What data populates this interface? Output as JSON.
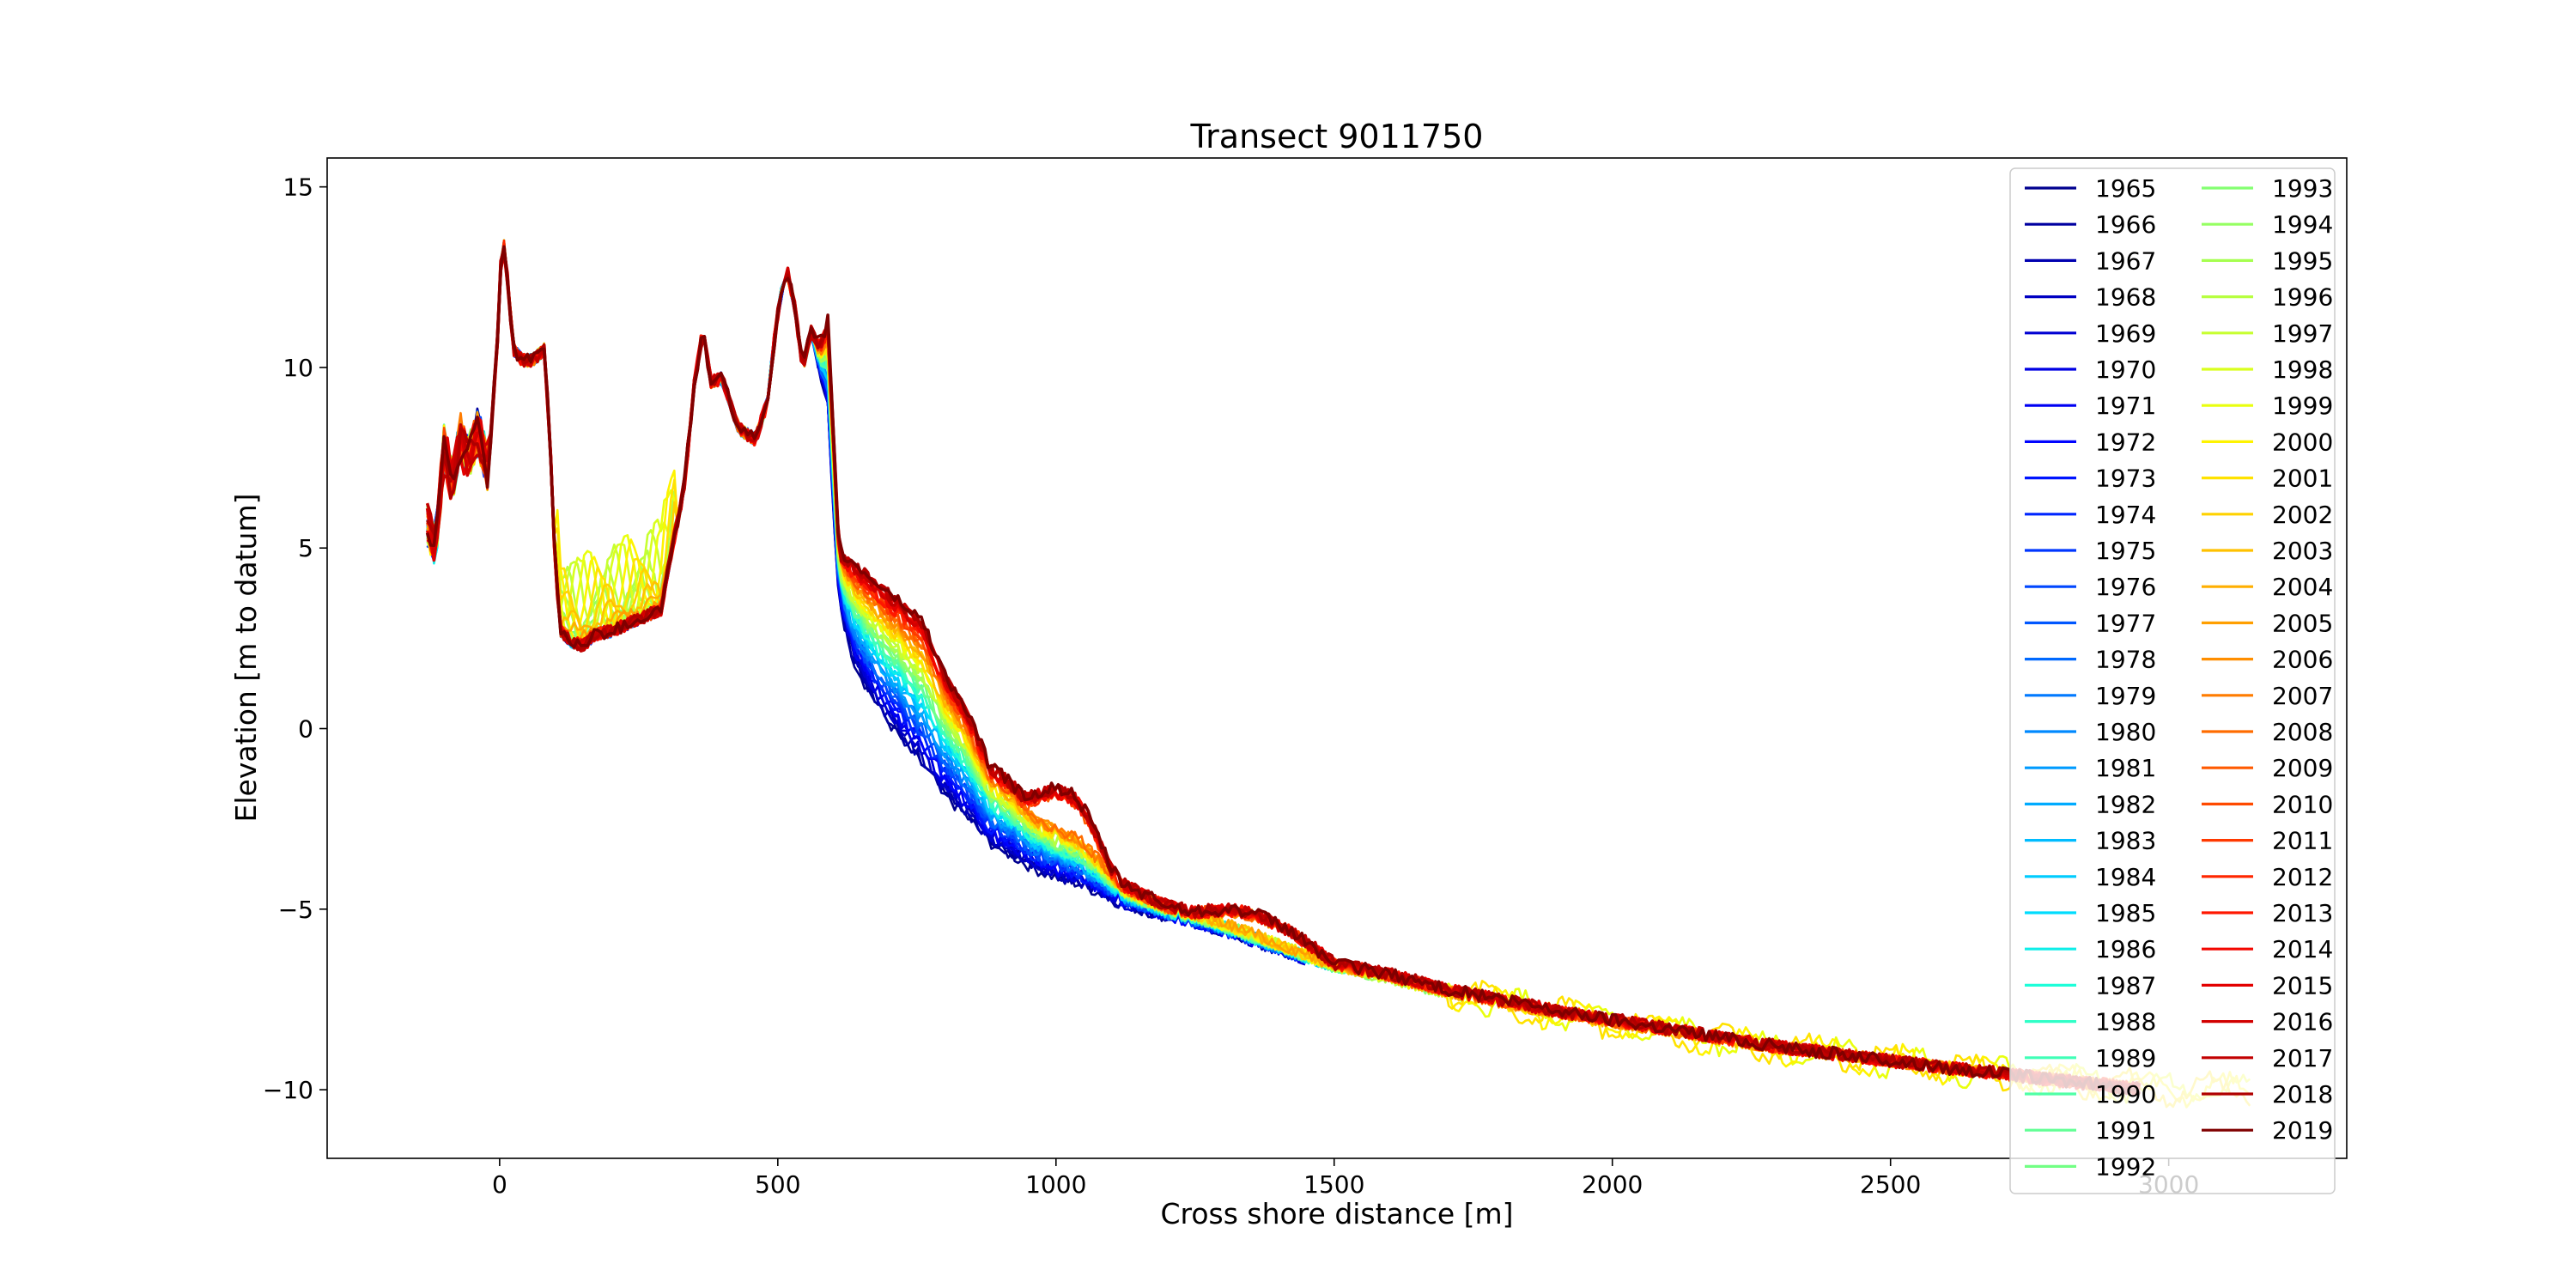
{
  "chart_data": {
    "type": "line",
    "title": "Transect 9011750",
    "xlabel": "Cross shore distance [m]",
    "ylabel": "Elevation [m to datum]",
    "xlim": [
      -310,
      3320
    ],
    "ylim": [
      -11.9,
      15.8
    ],
    "xticks": [
      0,
      500,
      1000,
      1500,
      2000,
      2500,
      3000
    ],
    "yticks": [
      -10,
      -5,
      0,
      5,
      10,
      15
    ],
    "xtick_labels": [
      "0",
      "500",
      "1000",
      "1500",
      "2000",
      "2500",
      "3000"
    ],
    "ytick_labels": [
      "−10",
      "−5",
      "0",
      "5",
      "10",
      "15"
    ],
    "grid": false,
    "legend_position": "top-right",
    "legend_columns": 2,
    "colormap": "jet",
    "colormap_stops": [
      "#00008f",
      "#0000ff",
      "#00ffff",
      "#7fff7f",
      "#ffff00",
      "#ff7f00",
      "#ff0000",
      "#800000"
    ],
    "profile": {
      "base_x": [
        -130,
        -115,
        -100,
        -85,
        -70,
        -55,
        -40,
        -20,
        -5,
        5,
        15,
        25,
        40,
        60,
        80,
        90,
        100,
        110,
        130,
        150,
        170,
        200,
        230,
        260,
        290,
        310,
        330,
        350,
        365,
        380,
        400,
        430,
        460,
        480,
        500,
        515,
        530,
        545,
        560,
        575,
        590,
        610,
        640,
        680,
        720,
        760,
        800,
        840,
        880,
        920,
        960,
        1000,
        1040,
        1080,
        1120,
        1160,
        1200,
        1260,
        1320,
        1400,
        1500,
        1600,
        1700,
        1800,
        1900,
        2000,
        2100,
        2200,
        2300,
        2400,
        2500,
        2600,
        2700,
        2800,
        2900,
        3000
      ],
      "base_y": [
        5.7,
        5.0,
        7.7,
        6.8,
        8.0,
        7.5,
        8.2,
        7.2,
        10.5,
        13.8,
        12.3,
        10.5,
        10.2,
        10.2,
        10.5,
        8.2,
        4.5,
        2.7,
        2.4,
        2.3,
        2.6,
        2.7,
        2.9,
        3.1,
        3.3,
        5.0,
        6.5,
        9.5,
        11.0,
        9.6,
        9.7,
        8.3,
        8.0,
        9.0,
        11.5,
        12.8,
        11.7,
        10.0,
        11.0,
        10.6,
        11.3,
        4.9,
        4.5,
        4.0,
        3.5,
        3.0,
        1.5,
        0.5,
        -1.0,
        -1.5,
        -2.2,
        -2.5,
        -2.8,
        -3.5,
        -4.3,
        -4.6,
        -4.9,
        -5.1,
        -5.4,
        -5.9,
        -6.5,
        -6.8,
        -7.2,
        -7.5,
        -7.8,
        -8.05,
        -8.3,
        -8.55,
        -8.8,
        -9.0,
        -9.2,
        -9.4,
        -9.55,
        -9.75,
        -9.9,
        -10.1
      ],
      "scarp_start_x": 540,
      "scarp_y": [
        10.8,
        10.6,
        7.0,
        4.5,
        2.4,
        1.0,
        0.0,
        -1.0,
        -2.0,
        -3.0,
        -3.6,
        -4.0,
        -4.4,
        -4.8,
        -5.1,
        -5.4,
        -5.8,
        -6.3,
        -6.8,
        -7.2,
        -7.6,
        -7.9,
        -8.2,
        -8.45,
        -8.7,
        -8.95,
        -9.15,
        -9.35,
        -9.55,
        -9.75
      ],
      "scarp_x": [
        540,
        560,
        575,
        590,
        620,
        660,
        700,
        750,
        820,
        900,
        960,
        1000,
        1060,
        1120,
        1180,
        1240,
        1320,
        1420,
        1520,
        1620,
        1720,
        1820,
        1920,
        2020,
        2150,
        2300,
        2450,
        2600,
        2750,
        2900
      ]
    },
    "series": [
      {
        "name": "1965",
        "color": "#00008f",
        "max_x": 1450
      },
      {
        "name": "1966",
        "color": "#0000a0",
        "max_x": 1450
      },
      {
        "name": "1967",
        "color": "#0000b0",
        "max_x": 1450
      },
      {
        "name": "1968",
        "color": "#0000c2",
        "max_x": 1450
      },
      {
        "name": "1969",
        "color": "#0000d2",
        "max_x": 1450
      },
      {
        "name": "1970",
        "color": "#0000e3",
        "max_x": 1450
      },
      {
        "name": "1971",
        "color": "#0000f3",
        "max_x": 1450
      },
      {
        "name": "1972",
        "color": "#0004ff",
        "max_x": 1450
      },
      {
        "name": "1973",
        "color": "#0014ff",
        "max_x": 1450
      },
      {
        "name": "1974",
        "color": "#0026ff",
        "max_x": 1450
      },
      {
        "name": "1975",
        "color": "#0036ff",
        "max_x": 1450
      },
      {
        "name": "1976",
        "color": "#0047ff",
        "max_x": 1450
      },
      {
        "name": "1977",
        "color": "#0057ff",
        "max_x": 1450
      },
      {
        "name": "1978",
        "color": "#0069ff",
        "max_x": 1450
      },
      {
        "name": "1979",
        "color": "#0079ff",
        "max_x": 1450
      },
      {
        "name": "1980",
        "color": "#0089ff",
        "max_x": 1450
      },
      {
        "name": "1981",
        "color": "#009bff",
        "max_x": 1490
      },
      {
        "name": "1982",
        "color": "#00abff",
        "max_x": 1490
      },
      {
        "name": "1983",
        "color": "#00bcff",
        "max_x": 1490
      },
      {
        "name": "1984",
        "color": "#00ccff",
        "max_x": 1490
      },
      {
        "name": "1985",
        "color": "#00dcfe",
        "max_x": 1490
      },
      {
        "name": "1986",
        "color": "#0eeee9",
        "max_x": 1490
      },
      {
        "name": "1987",
        "color": "#1efed9",
        "max_x": 1490
      },
      {
        "name": "1988",
        "color": "#30ffc7",
        "max_x": 1520
      },
      {
        "name": "1989",
        "color": "#40ffb7",
        "max_x": 1520
      },
      {
        "name": "1990",
        "color": "#50ffa6",
        "max_x": 1520
      },
      {
        "name": "1991",
        "color": "#62ff95",
        "max_x": 1520
      },
      {
        "name": "1992",
        "color": "#72ff84",
        "max_x": 1520
      },
      {
        "name": "1993",
        "color": "#84ff72",
        "max_x": 1700
      },
      {
        "name": "1994",
        "color": "#95ff62",
        "max_x": 1700
      },
      {
        "name": "1995",
        "color": "#a6ff50",
        "max_x": 1700
      },
      {
        "name": "1996",
        "color": "#b7ff40",
        "max_x": 1750
      },
      {
        "name": "1997",
        "color": "#c7ff30",
        "max_x": 1750
      },
      {
        "name": "1998",
        "color": "#d9ff1e",
        "max_x": 1750
      },
      {
        "name": "1999",
        "color": "#e9ff0e",
        "max_x": 3150
      },
      {
        "name": "2000",
        "color": "#fef300",
        "max_x": 3150
      },
      {
        "name": "2001",
        "color": "#ffe200",
        "max_x": 3150
      },
      {
        "name": "2002",
        "color": "#ffd200",
        "max_x": 2950
      },
      {
        "name": "2003",
        "color": "#ffc100",
        "max_x": 2950
      },
      {
        "name": "2004",
        "color": "#ffaf00",
        "max_x": 2950
      },
      {
        "name": "2005",
        "color": "#ff9f00",
        "max_x": 2950
      },
      {
        "name": "2006",
        "color": "#ff8e00",
        "max_x": 2950
      },
      {
        "name": "2007",
        "color": "#ff7c00",
        "max_x": 2950
      },
      {
        "name": "2008",
        "color": "#ff6c00",
        "max_x": 2950
      },
      {
        "name": "2009",
        "color": "#ff5a00",
        "max_x": 2950
      },
      {
        "name": "2010",
        "color": "#ff4a00",
        "max_x": 2950
      },
      {
        "name": "2011",
        "color": "#ff3900",
        "max_x": 2950
      },
      {
        "name": "2012",
        "color": "#ff2700",
        "max_x": 2950
      },
      {
        "name": "2013",
        "color": "#ff1700",
        "max_x": 2950
      },
      {
        "name": "2014",
        "color": "#f30700",
        "max_x": 2950
      },
      {
        "name": "2015",
        "color": "#e30000",
        "max_x": 2950
      },
      {
        "name": "2016",
        "color": "#d20000",
        "max_x": 2950
      },
      {
        "name": "2017",
        "color": "#c20000",
        "max_x": 2950
      },
      {
        "name": "2018",
        "color": "#b00000",
        "max_x": 2950
      },
      {
        "name": "2019",
        "color": "#800000",
        "max_x": 2950
      }
    ]
  }
}
